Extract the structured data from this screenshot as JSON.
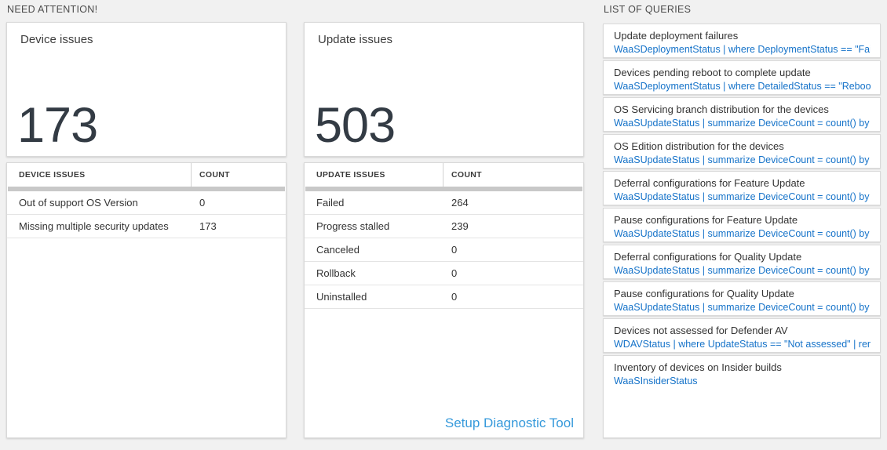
{
  "colors": {
    "page_background": "#f1f1f1",
    "query_link_blue": "#1673c9",
    "setup_link_blue": "#3599db",
    "big_number_color": "#333b44"
  },
  "need_attention": {
    "header": "NEED ATTENTION!",
    "device_tile": {
      "title": "Device issues",
      "count": "173"
    },
    "update_tile": {
      "title": "Update issues",
      "count": "503"
    },
    "device_table": {
      "columns": [
        "DEVICE ISSUES",
        "COUNT"
      ],
      "rows": [
        {
          "label": "Out of support OS Version",
          "count": "0"
        },
        {
          "label": "Missing multiple security updates",
          "count": "173"
        }
      ]
    },
    "update_table": {
      "columns": [
        "UPDATE ISSUES",
        "COUNT"
      ],
      "rows": [
        {
          "label": "Failed",
          "count": "264"
        },
        {
          "label": "Progress stalled",
          "count": "239"
        },
        {
          "label": "Canceled",
          "count": "0"
        },
        {
          "label": "Rollback",
          "count": "0"
        },
        {
          "label": "Uninstalled",
          "count": "0"
        }
      ],
      "footer_link": "Setup Diagnostic Tool"
    }
  },
  "queries": {
    "header": "LIST OF QUERIES",
    "items": [
      {
        "title": "Update deployment failures",
        "query": "WaaSDeploymentStatus | where DeploymentStatus == \"Failed\" |..."
      },
      {
        "title": "Devices pending reboot to complete update",
        "query": "WaaSDeploymentStatus | where DetailedStatus == \"Reboot pend..."
      },
      {
        "title": "OS Servicing branch distribution for the devices",
        "query": "WaaSUpdateStatus | summarize DeviceCount = count() by OSSer..."
      },
      {
        "title": "OS Edition distribution for the devices",
        "query": "WaaSUpdateStatus | summarize DeviceCount = count() by OSEdit..."
      },
      {
        "title": "Deferral configurations for Feature Update",
        "query": "WaaSUpdateStatus | summarize DeviceCount = count() by Featur..."
      },
      {
        "title": "Pause configurations for Feature Update",
        "query": "WaaSUpdateStatus | summarize DeviceCount = count() by Featur..."
      },
      {
        "title": "Deferral configurations for Quality Update",
        "query": "WaaSUpdateStatus | summarize DeviceCount = count() by Qualit..."
      },
      {
        "title": "Pause configurations for Quality Update",
        "query": "WaaSUpdateStatus | summarize DeviceCount = count() by Qualit..."
      },
      {
        "title": "Devices not assessed for Defender AV",
        "query": "WDAVStatus | where UpdateStatus == \"Not assessed\" | render ta..."
      },
      {
        "title": "Inventory of devices on Insider builds",
        "query": "WaaSInsiderStatus"
      }
    ]
  }
}
